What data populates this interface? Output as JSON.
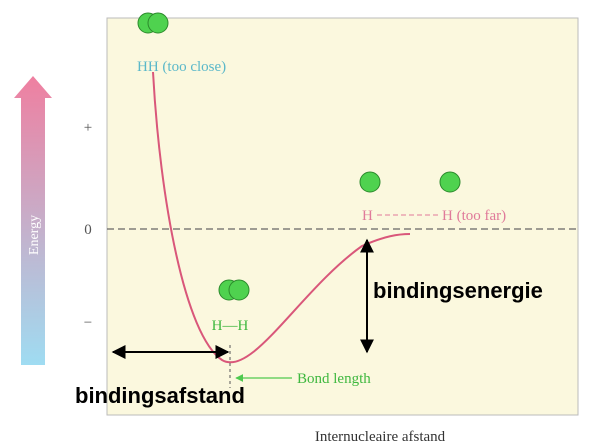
{
  "axis": {
    "title": "Energy",
    "ticks": [
      "+",
      "0",
      "−"
    ],
    "x_title": "Internucleaire afstand"
  },
  "labels": {
    "too_close": "HH (too close)",
    "far_left": "H",
    "far_right": "H (too far)",
    "bonded": "H—H",
    "bond_length": "Bond length"
  },
  "annotations": {
    "energy": "bindingsenergie",
    "distance": "bindingsafstand"
  }
}
